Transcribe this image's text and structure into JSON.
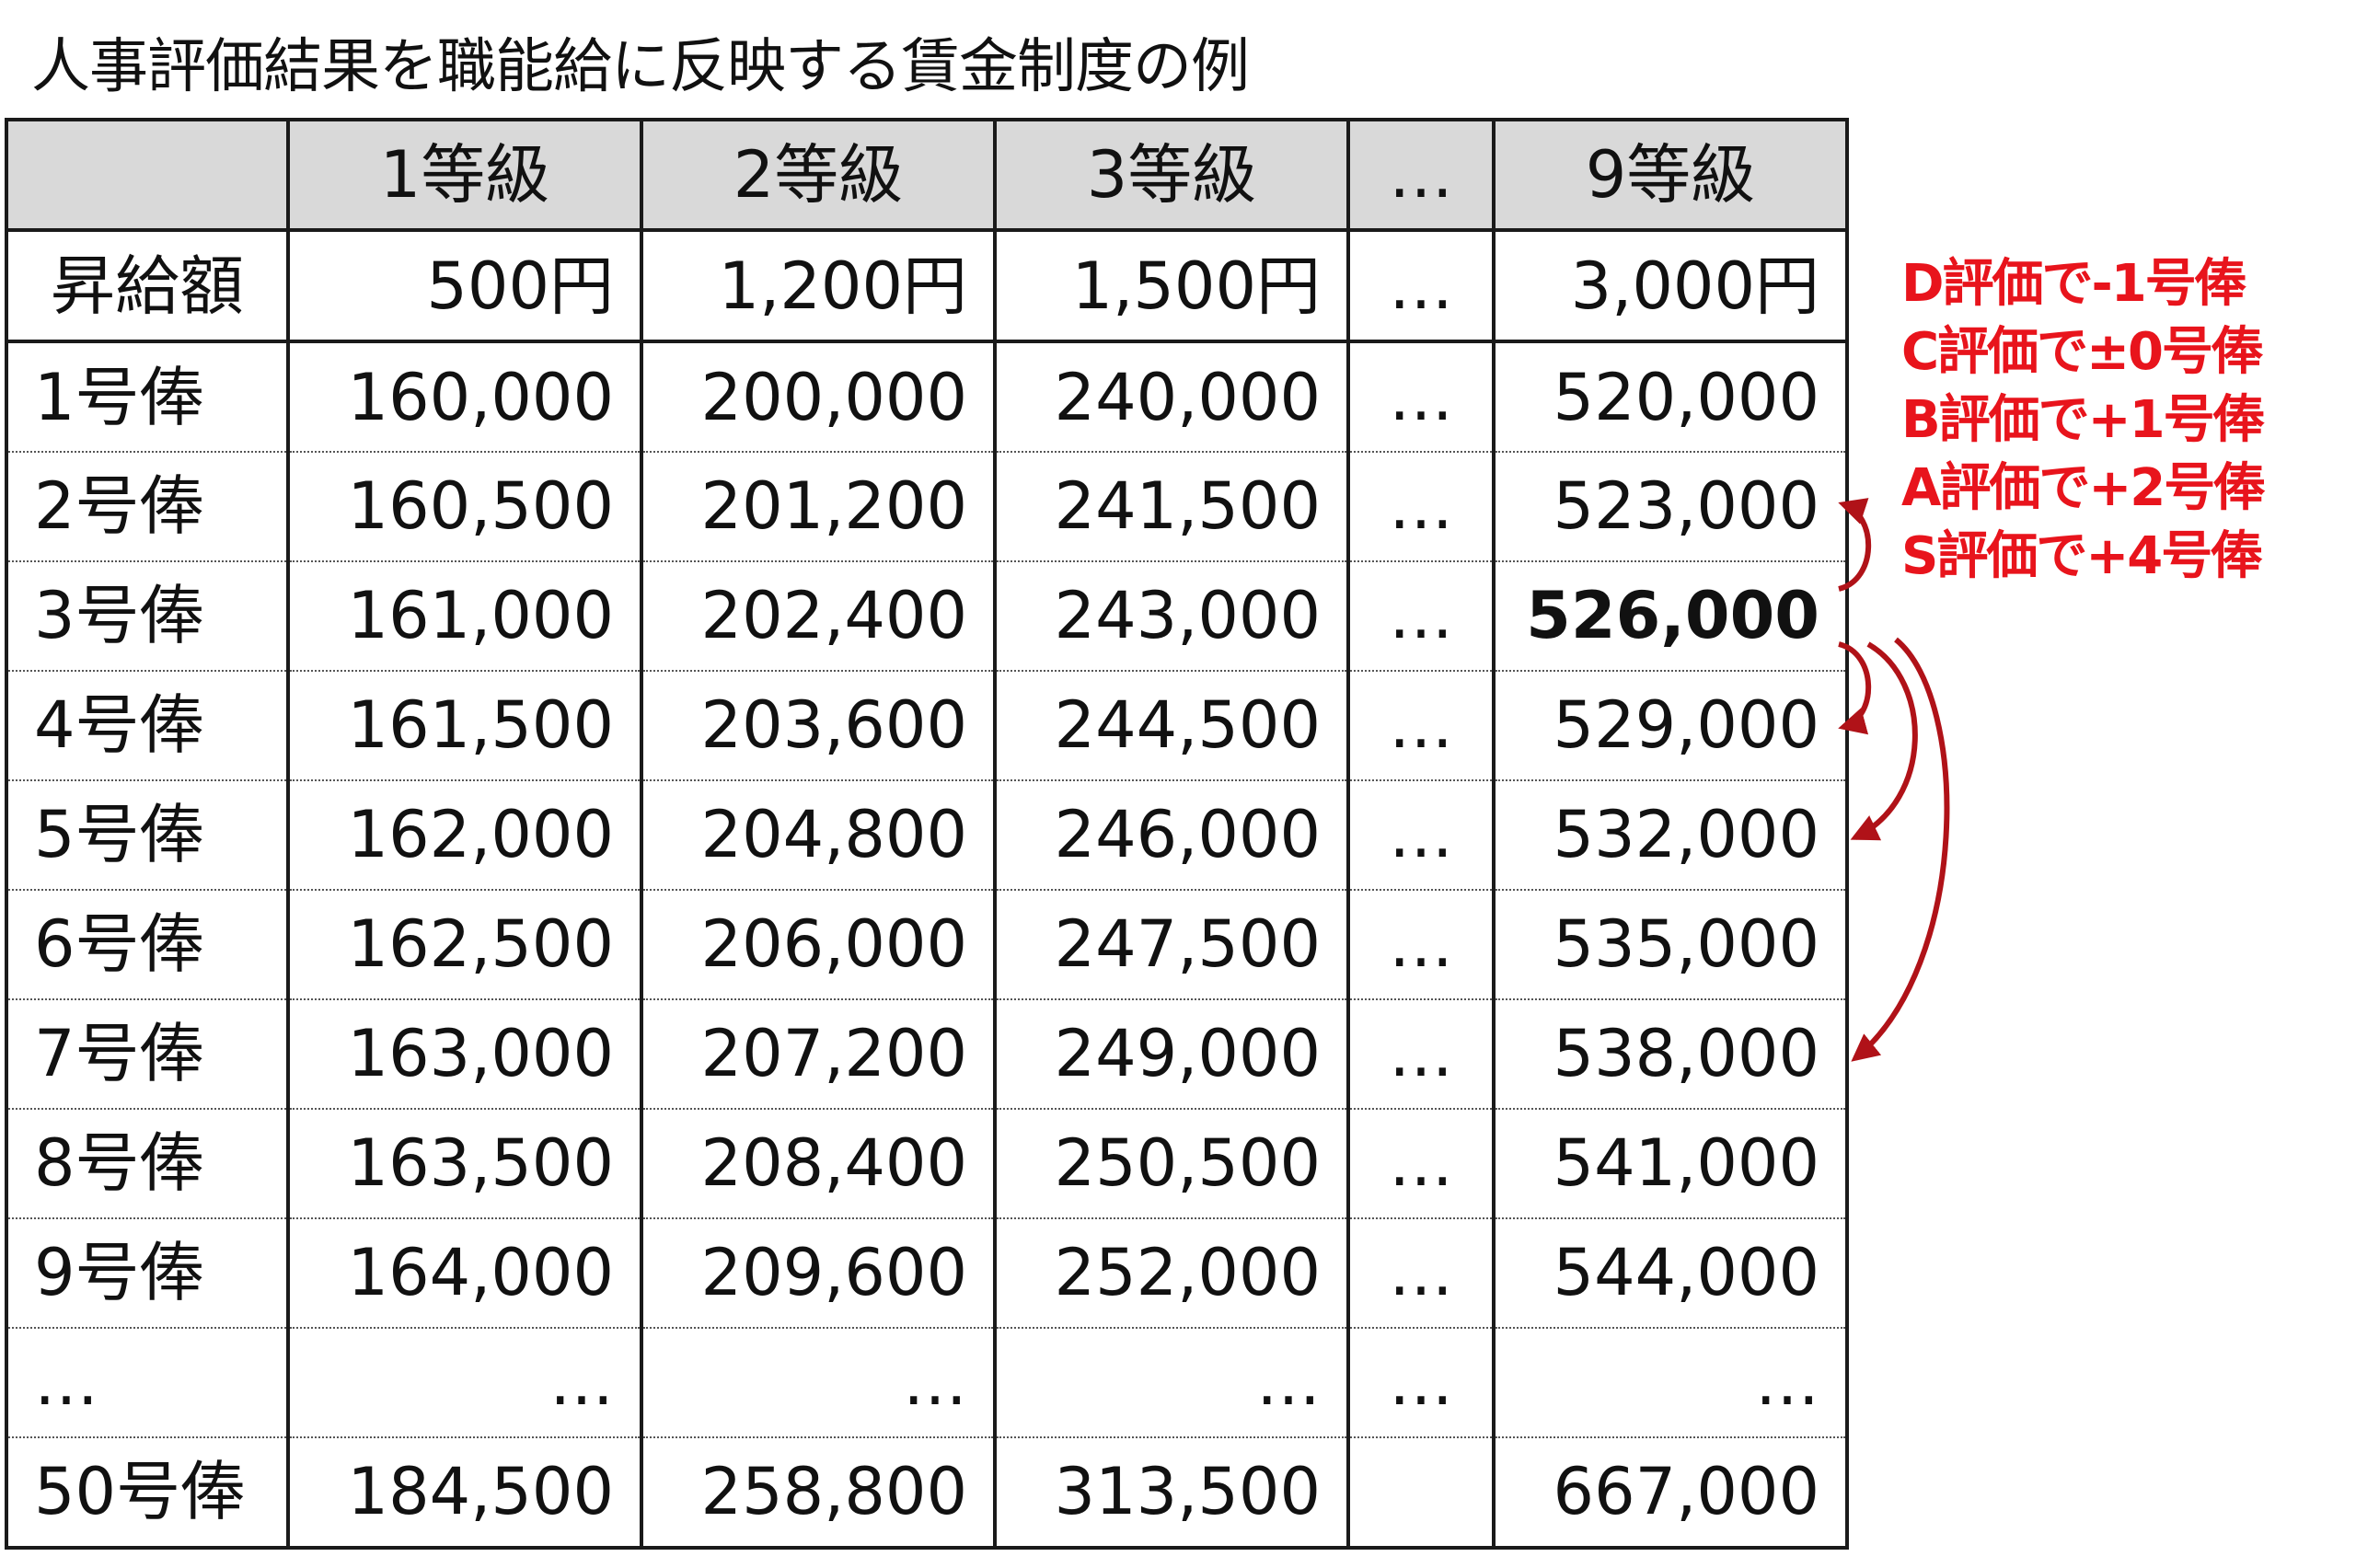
{
  "title": "人事評価結果を職能給に反映する賃金制度の例",
  "table": {
    "header": [
      "",
      "1等級",
      "2等級",
      "3等級",
      "…",
      "9等級"
    ],
    "raise_row": {
      "label": "昇給額",
      "cells": [
        "500円",
        "1,200円",
        "1,500円",
        "…",
        "3,000円"
      ]
    },
    "rows": [
      {
        "label": "1号俸",
        "cells": [
          "160,000",
          "200,000",
          "240,000",
          "…",
          "520,000"
        ]
      },
      {
        "label": "2号俸",
        "cells": [
          "160,500",
          "201,200",
          "241,500",
          "…",
          "523,000"
        ]
      },
      {
        "label": "3号俸",
        "cells": [
          "161,000",
          "202,400",
          "243,000",
          "…",
          "526,000"
        ]
      },
      {
        "label": "4号俸",
        "cells": [
          "161,500",
          "203,600",
          "244,500",
          "…",
          "529,000"
        ]
      },
      {
        "label": "5号俸",
        "cells": [
          "162,000",
          "204,800",
          "246,000",
          "…",
          "532,000"
        ]
      },
      {
        "label": "6号俸",
        "cells": [
          "162,500",
          "206,000",
          "247,500",
          "…",
          "535,000"
        ]
      },
      {
        "label": "7号俸",
        "cells": [
          "163,000",
          "207,200",
          "249,000",
          "…",
          "538,000"
        ]
      },
      {
        "label": "8号俸",
        "cells": [
          "163,500",
          "208,400",
          "250,500",
          "…",
          "541,000"
        ]
      },
      {
        "label": "9号俸",
        "cells": [
          "164,000",
          "209,600",
          "252,000",
          "…",
          "544,000"
        ]
      },
      {
        "label": "…",
        "cells": [
          "…",
          "…",
          "…",
          "…",
          "…"
        ]
      },
      {
        "label": "50号俸",
        "cells": [
          "184,500",
          "258,800",
          "313,500",
          "",
          "667,000"
        ]
      }
    ],
    "highlighted_value": "526,000"
  },
  "legend": [
    "D評価で-1号俸",
    "C評価で±0号俸",
    "B評価で+1号俸",
    "A評価で+2号俸",
    "S評価で+4号俸"
  ],
  "colors": {
    "accent": "#e8141c",
    "arrow": "#b01218",
    "header_bg": "#d9d9d9"
  }
}
